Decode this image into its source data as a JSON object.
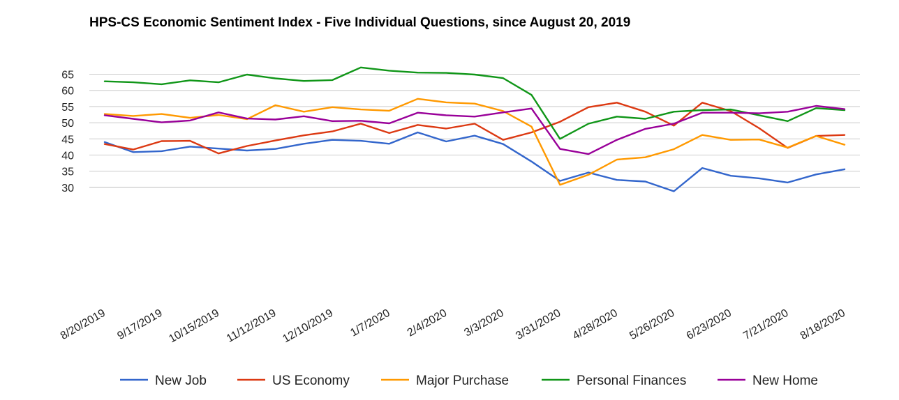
{
  "chart_data": {
    "type": "line",
    "title": "HPS-CS Economic Sentiment Index - Five Individual Questions, since August 20, 2019",
    "xlabel": "",
    "ylabel": "",
    "ylim": [
      27,
      68
    ],
    "y_ticks": [
      30,
      35,
      40,
      45,
      50,
      55,
      60,
      65
    ],
    "grid": true,
    "legend_position": "bottom",
    "x_tick_labels": [
      "8/20/2019",
      "9/17/2019",
      "10/15/2019",
      "11/12/2019",
      "12/10/2019",
      "1/7/2020",
      "2/4/2020",
      "3/3/2020",
      "3/31/2020",
      "4/28/2020",
      "5/26/2020",
      "6/23/2020",
      "7/21/2020",
      "8/18/2020"
    ],
    "x_count": 27,
    "series": [
      {
        "name": "New Job",
        "color": "#3366cc",
        "values": [
          44.0,
          40.9,
          41.2,
          42.6,
          42.0,
          41.4,
          41.9,
          43.5,
          44.7,
          44.4,
          43.5,
          47.0,
          44.2,
          46.0,
          43.4,
          38.0,
          32.0,
          34.6,
          32.3,
          31.8,
          28.8,
          36.0,
          33.6,
          32.8,
          31.5,
          34.0,
          35.6
        ]
      },
      {
        "name": "US Economy",
        "color": "#dc3912",
        "values": [
          43.4,
          41.7,
          44.3,
          44.4,
          40.5,
          42.8,
          44.5,
          46.1,
          47.3,
          49.7,
          46.8,
          49.3,
          48.2,
          49.7,
          44.7,
          47.0,
          50.3,
          54.8,
          56.2,
          53.4,
          49.1,
          56.2,
          53.6,
          48.3,
          42.2,
          45.9,
          46.2
        ]
      },
      {
        "name": "Major Purchase",
        "color": "#ff9900",
        "values": [
          52.7,
          52.1,
          52.7,
          51.5,
          52.4,
          51.1,
          55.4,
          53.4,
          54.8,
          54.1,
          53.7,
          57.4,
          56.3,
          55.9,
          53.6,
          48.8,
          30.8,
          33.9,
          38.6,
          39.3,
          41.8,
          46.2,
          44.7,
          44.8,
          42.3,
          45.9,
          43.2
        ]
      },
      {
        "name": "Personal Finances",
        "color": "#109618",
        "values": [
          62.8,
          62.5,
          61.9,
          63.1,
          62.5,
          64.9,
          63.7,
          62.9,
          63.2,
          67.1,
          66.1,
          65.5,
          65.4,
          64.9,
          63.8,
          58.6,
          45.0,
          49.7,
          51.9,
          51.2,
          53.4,
          53.9,
          54.1,
          52.3,
          50.5,
          54.5,
          53.9
        ]
      },
      {
        "name": "New Home",
        "color": "#990099",
        "values": [
          52.3,
          51.2,
          50.1,
          50.7,
          53.2,
          51.3,
          51.0,
          52.0,
          50.5,
          50.6,
          49.8,
          53.1,
          52.3,
          51.9,
          53.2,
          54.4,
          41.9,
          40.3,
          44.7,
          48.1,
          49.7,
          53.1,
          53.1,
          52.9,
          53.4,
          55.2,
          54.2
        ]
      }
    ]
  }
}
